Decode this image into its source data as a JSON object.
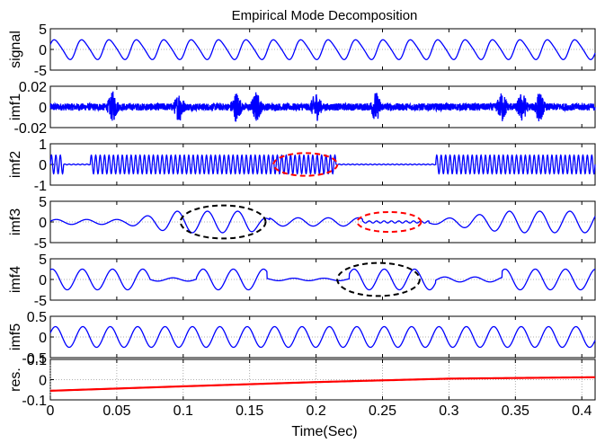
{
  "title": "Empirical Mode Decomposition",
  "xlabel": "Time(Sec)",
  "colors": {
    "signal": "#0000ff",
    "residual": "#ff0000",
    "annot_black": "#000000",
    "annot_red": "#ff0000"
  },
  "chart_data": {
    "type": "line",
    "title": "Empirical Mode Decomposition",
    "xlabel": "Time(Sec)",
    "xlim": [
      0,
      0.41
    ],
    "xticks": [
      0,
      0.05,
      0.1,
      0.15,
      0.2,
      0.25,
      0.3,
      0.35,
      0.4
    ],
    "xtick_labels": [
      "0",
      "0.05",
      "0.1",
      "0.15",
      "0.2",
      "0.25",
      "0.3",
      "0.35",
      "0.4"
    ],
    "panels": [
      {
        "ylabel": "signal",
        "ylim": [
          -5,
          5
        ],
        "yticks": [
          -5,
          0,
          5
        ],
        "ytick_labels": [
          "-5",
          "0",
          "5"
        ],
        "component": "sum of imfs",
        "approx_cycles_in_window": 20,
        "amplitude": 2.5
      },
      {
        "ylabel": "imf1",
        "ylim": [
          -0.02,
          0.02
        ],
        "yticks": [
          -0.02,
          0,
          0.02
        ],
        "ytick_labels": [
          "-0.02",
          "0",
          "0.02"
        ],
        "component": "high-frequency noise with bursts",
        "burst_times": [
          0.047,
          0.097,
          0.14,
          0.155,
          0.2,
          0.245,
          0.34,
          0.355,
          0.368
        ],
        "amplitude": 0.016
      },
      {
        "ylabel": "imf2",
        "ylim": [
          -1,
          1
        ],
        "yticks": [
          -1,
          0,
          1
        ],
        "ytick_labels": [
          "-1",
          "0",
          "1"
        ],
        "component": "high-frequency oscillation, absent 0.215–0.29 s",
        "amplitude": 0.45,
        "active_segments": [
          [
            0.0,
            0.01
          ],
          [
            0.03,
            0.215
          ],
          [
            0.29,
            0.41
          ]
        ],
        "annotations": [
          {
            "color": "red",
            "center": [
              0.192,
              0.0
            ],
            "rx": 0.024,
            "ry": 0.55
          }
        ]
      },
      {
        "ylabel": "imf3",
        "ylim": [
          -5,
          5
        ],
        "yticks": [
          -5,
          0,
          5
        ],
        "ytick_labels": [
          "-5",
          "0",
          "5"
        ],
        "component": "intermittent mid-frequency oscillation",
        "amplitude": 2.6,
        "annotations": [
          {
            "color": "black",
            "center": [
              0.13,
              0.0
            ],
            "rx": 0.032,
            "ry": 4.0
          },
          {
            "color": "red",
            "center": [
              0.255,
              0.0
            ],
            "rx": 0.024,
            "ry": 2.4
          }
        ]
      },
      {
        "ylabel": "imf4",
        "ylim": [
          -5,
          5
        ],
        "yticks": [
          -5,
          0,
          5
        ],
        "ytick_labels": [
          "-5",
          "0",
          "5"
        ],
        "component": "intermittent mid-frequency oscillation",
        "amplitude": 2.5,
        "annotations": [
          {
            "color": "black",
            "center": [
              0.247,
              0.0
            ],
            "rx": 0.031,
            "ry": 4.0
          }
        ]
      },
      {
        "ylabel": "imf5",
        "ylim": [
          -0.5,
          0.5
        ],
        "yticks": [
          -0.5,
          0,
          0.5
        ],
        "ytick_labels": [
          "-0.5",
          "0",
          "0.5"
        ],
        "component": "low-frequency oscillation",
        "approx_cycles_in_window": 20,
        "amplitude": 0.25
      },
      {
        "ylabel": "res.",
        "ylim": [
          -0.1,
          0.1
        ],
        "yticks": [
          -0.1,
          0,
          0.1
        ],
        "ytick_labels": [
          "-0.1",
          "0",
          "0.1"
        ],
        "component": "residual trend",
        "x": [
          0,
          0.1,
          0.2,
          0.3,
          0.41
        ],
        "y": [
          -0.055,
          -0.033,
          -0.012,
          0.005,
          0.012
        ]
      }
    ],
    "grid": "dotted"
  }
}
